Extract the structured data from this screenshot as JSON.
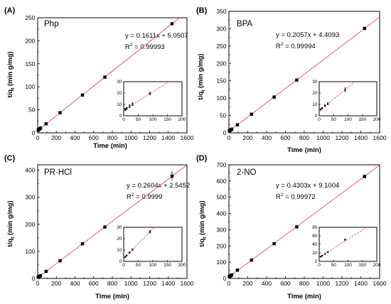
{
  "chart_data": [
    {
      "type": "scatter",
      "panel_label": "(A)",
      "compound": "Php",
      "equation": "y = 0.1611x + 5.0507",
      "r2_value": " = 0.99993",
      "r2_prefix": "R",
      "r2_sup": "2",
      "xlabel": "Time (min)",
      "ylabel_main": "t/q",
      "ylabel_sub": "t",
      "ylabel_unit": " (min g/mg)",
      "xlim": [
        0,
        1600
      ],
      "ylim": [
        0,
        250
      ],
      "xticks": [
        0,
        200,
        400,
        600,
        800,
        1000,
        1200,
        1400,
        1600
      ],
      "yticks": [
        0,
        50,
        100,
        150,
        200,
        250
      ],
      "fit": {
        "slope": 0.1611,
        "intercept": 5.0507
      },
      "points": [
        {
          "x": 5,
          "y": 5.5
        },
        {
          "x": 10,
          "y": 6.5
        },
        {
          "x": 20,
          "y": 8.4
        },
        {
          "x": 30,
          "y": 10.2
        },
        {
          "x": 90,
          "y": 19.6
        },
        {
          "x": 240,
          "y": 43.7
        },
        {
          "x": 480,
          "y": 82.2
        },
        {
          "x": 720,
          "y": 121
        },
        {
          "x": 1440,
          "y": 237
        }
      ],
      "inset": {
        "xlim": [
          0,
          200
        ],
        "ylim": [
          0,
          30
        ],
        "xticks": [
          0,
          50,
          100,
          150,
          200
        ],
        "yticks": [
          0,
          10,
          20,
          30
        ],
        "points": [
          {
            "x": 5,
            "y": 5.5,
            "err": 1.0
          },
          {
            "x": 10,
            "y": 6.5,
            "err": 1.0
          },
          {
            "x": 20,
            "y": 8.4,
            "err": 1.2
          },
          {
            "x": 30,
            "y": 10.2,
            "err": 1.2
          },
          {
            "x": 90,
            "y": 19.6,
            "err": 1.0
          }
        ]
      }
    },
    {
      "type": "scatter",
      "panel_label": "(B)",
      "compound": "BPA",
      "equation": "y = 0.2057x + 4.4093",
      "r2_value": " = 0.99994",
      "r2_prefix": "R",
      "r2_sup": "2",
      "xlabel": "Time (min)",
      "ylabel_main": "t/q",
      "ylabel_sub": "t",
      "ylabel_unit": " (min g/mg)",
      "xlim": [
        0,
        1600
      ],
      "ylim": [
        0,
        350
      ],
      "xticks": [
        0,
        200,
        400,
        600,
        800,
        1000,
        1200,
        1400,
        1600
      ],
      "yticks": [
        0,
        50,
        100,
        150,
        200,
        250,
        300,
        350
      ],
      "fit": {
        "slope": 0.2057,
        "intercept": 4.4093
      },
      "points": [
        {
          "x": 5,
          "y": 5.5
        },
        {
          "x": 10,
          "y": 6.6
        },
        {
          "x": 20,
          "y": 8.8
        },
        {
          "x": 30,
          "y": 10.6
        },
        {
          "x": 90,
          "y": 23
        },
        {
          "x": 240,
          "y": 53.7
        },
        {
          "x": 480,
          "y": 103
        },
        {
          "x": 720,
          "y": 152
        },
        {
          "x": 1440,
          "y": 301
        }
      ],
      "inset": {
        "xlim": [
          0,
          200
        ],
        "ylim": [
          0,
          30
        ],
        "xticks": [
          0,
          50,
          100,
          150,
          200
        ],
        "yticks": [
          0,
          10,
          20,
          30
        ],
        "points": [
          {
            "x": 5,
            "y": 5.5,
            "err": 0.6
          },
          {
            "x": 10,
            "y": 6.6,
            "err": 0.6
          },
          {
            "x": 20,
            "y": 8.8,
            "err": 0.8
          },
          {
            "x": 30,
            "y": 10.6,
            "err": 0.8
          },
          {
            "x": 90,
            "y": 23,
            "err": 1.5
          }
        ]
      }
    },
    {
      "type": "scatter",
      "panel_label": "(C)",
      "compound": "PR·HCl",
      "equation": "y = 0.2604x + 2.5452",
      "r2_value": " = 0.9999",
      "r2_prefix": "R",
      "r2_sup": "2",
      "xlabel": "Time (min)",
      "ylabel_main": "t/q",
      "ylabel_sub": "t",
      "ylabel_unit": " (min g/mg)",
      "xlim": [
        0,
        1600
      ],
      "ylim": [
        0,
        420
      ],
      "xticks": [
        0,
        200,
        400,
        600,
        800,
        1000,
        1200,
        1400,
        1600
      ],
      "yticks": [
        0,
        100,
        200,
        300,
        400
      ],
      "fit": {
        "slope": 0.2604,
        "intercept": 2.5452
      },
      "points": [
        {
          "x": 5,
          "y": 3.9
        },
        {
          "x": 10,
          "y": 5.2
        },
        {
          "x": 20,
          "y": 7.7
        },
        {
          "x": 30,
          "y": 10.4
        },
        {
          "x": 90,
          "y": 26
        },
        {
          "x": 240,
          "y": 65
        },
        {
          "x": 480,
          "y": 128
        },
        {
          "x": 720,
          "y": 190
        },
        {
          "x": 1440,
          "y": 378,
          "err": 15
        }
      ],
      "inset": {
        "xlim": [
          0,
          200
        ],
        "ylim": [
          0,
          30
        ],
        "xticks": [
          0,
          50,
          100,
          150,
          200
        ],
        "yticks": [
          0,
          10,
          20,
          30
        ],
        "points": [
          {
            "x": 5,
            "y": 3.9,
            "err": 0.5
          },
          {
            "x": 10,
            "y": 5.2,
            "err": 0.5
          },
          {
            "x": 20,
            "y": 7.7,
            "err": 0.6
          },
          {
            "x": 30,
            "y": 10.4,
            "err": 0.6
          },
          {
            "x": 90,
            "y": 26,
            "err": 1.0
          }
        ]
      }
    },
    {
      "type": "scatter",
      "panel_label": "(D)",
      "compound": "2-NO",
      "equation": "y = 0.4303x + 9.1004",
      "r2_value": " = 0.99972",
      "r2_prefix": "R",
      "r2_sup": "2",
      "xlabel": "Time (min)",
      "ylabel_main": "t/q",
      "ylabel_sub": "t",
      "ylabel_unit": " (min g/mg)",
      "xlim": [
        0,
        1600
      ],
      "ylim": [
        0,
        700
      ],
      "xticks": [
        0,
        200,
        400,
        600,
        800,
        1000,
        1200,
        1400,
        1600
      ],
      "yticks": [
        0,
        100,
        200,
        300,
        400,
        500,
        600,
        700
      ],
      "fit": {
        "slope": 0.4303,
        "intercept": 9.1004
      },
      "points": [
        {
          "x": 5,
          "y": 11
        },
        {
          "x": 10,
          "y": 13
        },
        {
          "x": 20,
          "y": 17.5
        },
        {
          "x": 30,
          "y": 22
        },
        {
          "x": 90,
          "y": 51
        },
        {
          "x": 240,
          "y": 113
        },
        {
          "x": 480,
          "y": 214
        },
        {
          "x": 720,
          "y": 318
        },
        {
          "x": 1440,
          "y": 628
        }
      ],
      "inset": {
        "xlim": [
          0,
          200
        ],
        "ylim": [
          0,
          80
        ],
        "xticks": [
          0,
          50,
          100,
          150,
          200
        ],
        "yticks": [
          0,
          20,
          40,
          60,
          80
        ],
        "points": [
          {
            "x": 5,
            "y": 11,
            "err": 1.0
          },
          {
            "x": 10,
            "y": 13,
            "err": 1.0
          },
          {
            "x": 20,
            "y": 17.5,
            "err": 1.0
          },
          {
            "x": 30,
            "y": 22,
            "err": 1.0
          },
          {
            "x": 90,
            "y": 51,
            "err": 1.5
          }
        ]
      }
    }
  ]
}
